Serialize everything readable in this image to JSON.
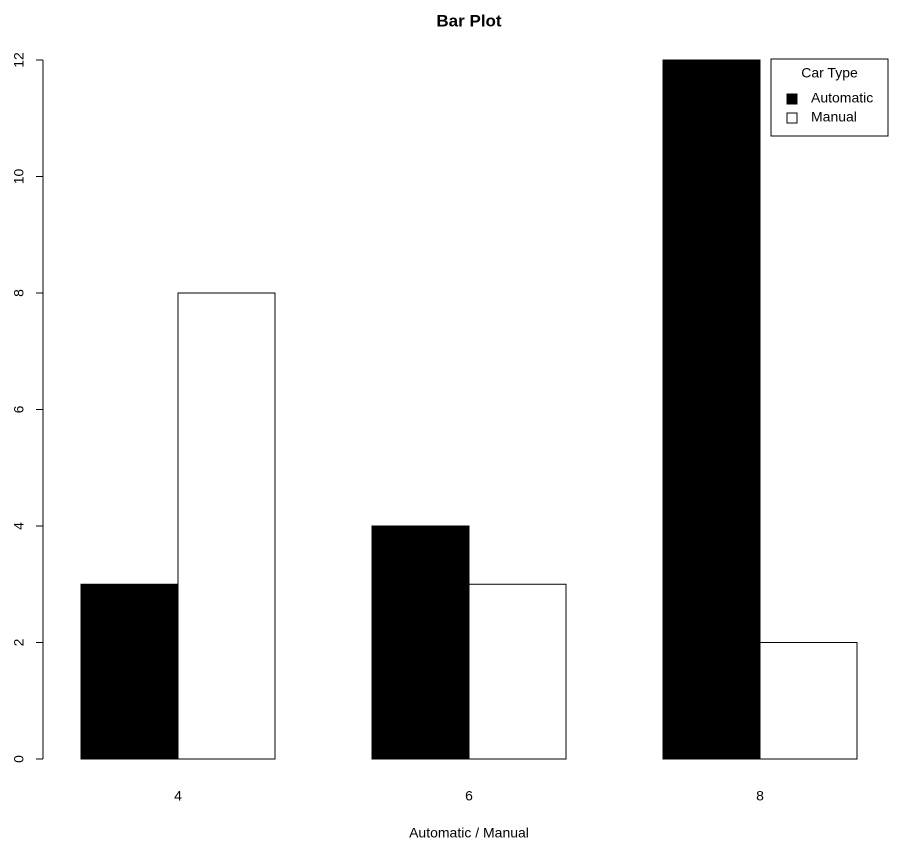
{
  "chart_data": {
    "type": "bar",
    "title": "Bar Plot",
    "x_label": "Automatic / Manual",
    "categories": [
      "4",
      "6",
      "8"
    ],
    "series": [
      {
        "name": "Automatic",
        "color": "#000000",
        "values": [
          3,
          4,
          12
        ]
      },
      {
        "name": "Manual",
        "color": "#ffffff",
        "values": [
          8,
          3,
          2
        ]
      }
    ],
    "ylim": [
      0,
      12
    ],
    "yticks": [
      0,
      2,
      4,
      6,
      8,
      10,
      12
    ],
    "legend_title": "Car Type",
    "legend_position": "top-right"
  }
}
